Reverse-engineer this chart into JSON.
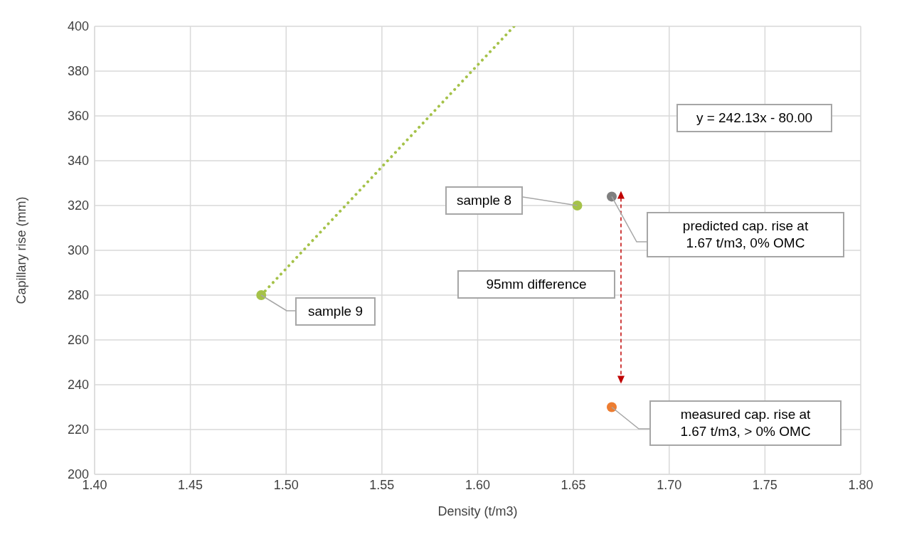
{
  "chart_data": {
    "type": "scatter",
    "xlabel": "Density (t/m3)",
    "ylabel": "Capillary rise (mm)",
    "xlim": [
      1.4,
      1.8
    ],
    "xticks": [
      {
        "value": 1.4,
        "label": "1.40"
      },
      {
        "value": 1.45,
        "label": "1.45"
      },
      {
        "value": 1.5,
        "label": "1.50"
      },
      {
        "value": 1.55,
        "label": "1.55"
      },
      {
        "value": 1.6,
        "label": "1.60"
      },
      {
        "value": 1.65,
        "label": "1.65"
      },
      {
        "value": 1.7,
        "label": "1.70"
      },
      {
        "value": 1.75,
        "label": "1.75"
      },
      {
        "value": 1.8,
        "label": "1.80"
      }
    ],
    "ylim": [
      200,
      400
    ],
    "yticks": [
      200,
      220,
      240,
      260,
      280,
      300,
      320,
      340,
      360,
      380,
      400
    ],
    "grid": true,
    "marker": "circle",
    "series": [
      {
        "type": "scatter",
        "color": "#a5c249",
        "x": [
          1.487,
          1.652
        ],
        "values": [
          280,
          320
        ]
      },
      {
        "type": "scatter",
        "color": "#7f7f7f",
        "x": [
          1.67
        ],
        "values": [
          324
        ]
      },
      {
        "type": "scatter",
        "color": "#ed7d31",
        "x": [
          1.67
        ],
        "values": [
          230
        ]
      },
      {
        "type": "line",
        "color": "#a5c249",
        "x": [
          1.487,
          1.619
        ],
        "values": [
          280,
          400
        ],
        "line_style": "dotted",
        "marker": "none"
      }
    ],
    "annotations": [
      {
        "text": "sample 9",
        "x": 1.487,
        "y": 280
      },
      {
        "text": "sample 8",
        "x": 1.652,
        "y": 320
      },
      "predicted cap. rise at 1.67 t/m3, 0% OMC",
      "measured cap. rise at 1.67 t/m3, > 0% OMC",
      "95mm difference",
      "y = 242.13x - 80.00"
    ]
  }
}
